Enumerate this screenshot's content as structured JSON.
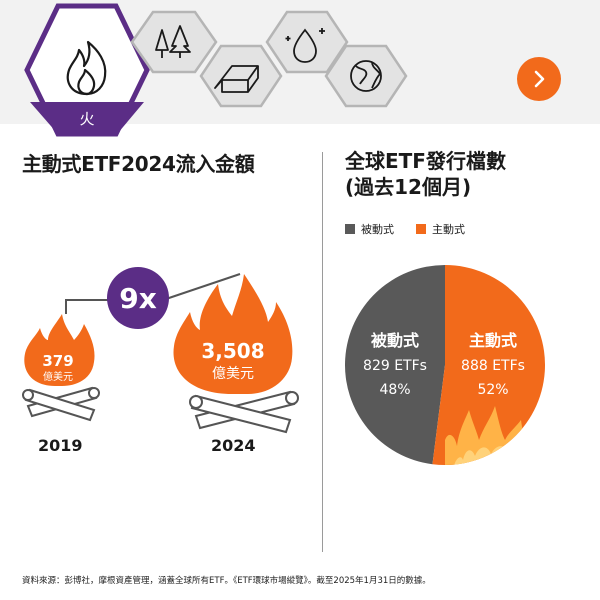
{
  "nav": {
    "active_label": "火",
    "icons": [
      "fire-icon",
      "trees-icon",
      "metal-bars-icon",
      "water-drop-icon",
      "globe-icon"
    ],
    "next_icon": "chevron-right-icon"
  },
  "left": {
    "title": "主動式ETF2024流入金額",
    "multiplier": "9x",
    "fire_small": {
      "value": "379",
      "unit": "億美元",
      "year": "2019"
    },
    "fire_large": {
      "value": "3,508",
      "unit": "億美元",
      "year": "2024"
    }
  },
  "right": {
    "title_line1": "全球ETF發行檔數",
    "title_line2": "(過去12個月)",
    "legend": [
      {
        "label": "被動式",
        "color": "#595959"
      },
      {
        "label": "主動式",
        "color": "#f26a1b"
      }
    ]
  },
  "chart_data": {
    "type": "pie",
    "slices": [
      {
        "name": "被動式",
        "count_label": "829 ETFs",
        "percent_label": "48%",
        "value": 48,
        "color": "#595959"
      },
      {
        "name": "主動式",
        "count_label": "888 ETFs",
        "percent_label": "52%",
        "value": 52,
        "color": "#f26a1b"
      }
    ]
  },
  "footnote": "資料來源：彭博社，摩根資產管理，涵蓋全球所有ETF。《ETF環球市場縱覽》。截至2025年1月31日的數據。",
  "colors": {
    "accent": "#f26a1b",
    "purple": "#5b2d86",
    "dark_gray": "#595959",
    "light_gray": "#dcdcdc"
  }
}
